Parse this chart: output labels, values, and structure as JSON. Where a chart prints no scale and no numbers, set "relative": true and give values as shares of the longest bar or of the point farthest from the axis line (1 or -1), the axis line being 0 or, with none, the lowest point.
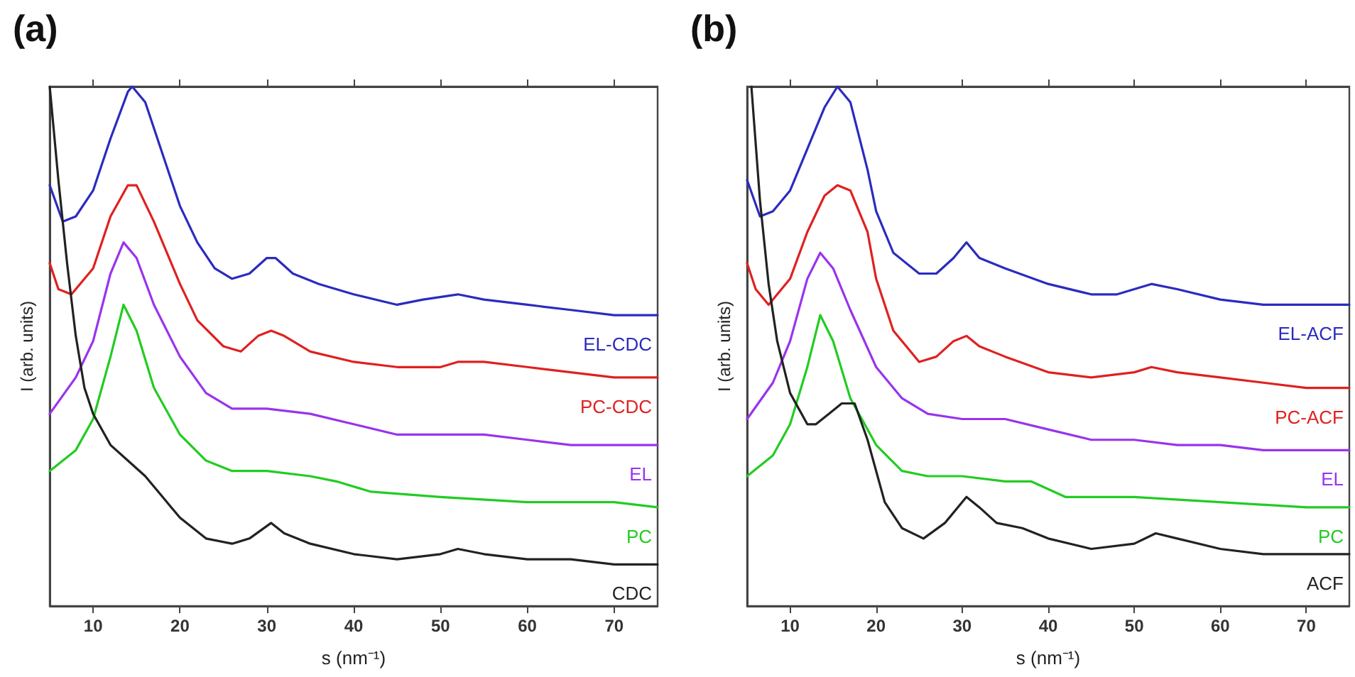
{
  "chart_data": [
    {
      "type": "line",
      "title": "(a)",
      "xlabel": "s (nm⁻¹)",
      "ylabel": "I (arb. units)",
      "xlim": [
        5,
        75
      ],
      "xticks": [
        10,
        20,
        30,
        40,
        50,
        60,
        70
      ],
      "relative": true,
      "tick_labels": "x",
      "marker": "none",
      "series": [
        {
          "name": "EL-CDC",
          "color": "#2b2bbf",
          "x": [
            5,
            6.5,
            8,
            10,
            12,
            14,
            14.5,
            16,
            18,
            20,
            22,
            24,
            26,
            28,
            30,
            31,
            33,
            36,
            40,
            45,
            48,
            52,
            55,
            60,
            65,
            70,
            75
          ],
          "values": [
            0.81,
            0.74,
            0.75,
            0.8,
            0.9,
            0.99,
            1.0,
            0.97,
            0.87,
            0.77,
            0.7,
            0.65,
            0.63,
            0.64,
            0.67,
            0.67,
            0.64,
            0.62,
            0.6,
            0.58,
            0.59,
            0.6,
            0.59,
            0.58,
            0.57,
            0.56,
            0.56
          ]
        },
        {
          "name": "PC-CDC",
          "color": "#e02020",
          "x": [
            5,
            6,
            7.5,
            10,
            12,
            14,
            15,
            17,
            20,
            22,
            25,
            27,
            29,
            30.5,
            32,
            35,
            40,
            45,
            50,
            52,
            55,
            60,
            65,
            70,
            75
          ],
          "values": [
            0.66,
            0.61,
            0.6,
            0.65,
            0.75,
            0.81,
            0.81,
            0.74,
            0.62,
            0.55,
            0.5,
            0.49,
            0.52,
            0.53,
            0.52,
            0.49,
            0.47,
            0.46,
            0.46,
            0.47,
            0.47,
            0.46,
            0.45,
            0.44,
            0.44
          ]
        },
        {
          "name": "EL",
          "color": "#9933ee",
          "x": [
            5,
            8,
            10,
            12,
            13.5,
            15,
            17,
            20,
            23,
            26,
            30,
            35,
            40,
            45,
            50,
            55,
            60,
            65,
            70,
            75
          ],
          "values": [
            0.37,
            0.44,
            0.51,
            0.64,
            0.7,
            0.67,
            0.58,
            0.48,
            0.41,
            0.38,
            0.38,
            0.37,
            0.35,
            0.33,
            0.33,
            0.33,
            0.32,
            0.31,
            0.31,
            0.31
          ]
        },
        {
          "name": "PC",
          "color": "#22cc22",
          "x": [
            5,
            8,
            10,
            12,
            13.5,
            15,
            17,
            20,
            23,
            26,
            30,
            35,
            38,
            42,
            50,
            60,
            70,
            75
          ],
          "values": [
            0.26,
            0.3,
            0.36,
            0.48,
            0.58,
            0.53,
            0.42,
            0.33,
            0.28,
            0.26,
            0.26,
            0.25,
            0.24,
            0.22,
            0.21,
            0.2,
            0.2,
            0.19
          ]
        },
        {
          "name": "CDC",
          "color": "#222222",
          "x": [
            5,
            6,
            7,
            8,
            9,
            10,
            12,
            14,
            16,
            18,
            19,
            20,
            23,
            26,
            28,
            30.5,
            32,
            35,
            40,
            45,
            50,
            52,
            55,
            60,
            65,
            70,
            75
          ],
          "values": [
            1.0,
            0.82,
            0.66,
            0.52,
            0.42,
            0.37,
            0.31,
            0.28,
            0.25,
            0.21,
            0.19,
            0.17,
            0.13,
            0.12,
            0.13,
            0.16,
            0.14,
            0.12,
            0.1,
            0.09,
            0.1,
            0.11,
            0.1,
            0.09,
            0.09,
            0.08,
            0.08
          ]
        }
      ]
    },
    {
      "type": "line",
      "title": "(b)",
      "xlabel": "s (nm⁻¹)",
      "ylabel": "I (arb. units)",
      "xlim": [
        5,
        75
      ],
      "xticks": [
        10,
        20,
        30,
        40,
        50,
        60,
        70
      ],
      "relative": true,
      "tick_labels": "x",
      "marker": "none",
      "series": [
        {
          "name": "EL-ACF",
          "color": "#2b2bbf",
          "x": [
            5,
            6.5,
            8,
            10,
            12,
            14,
            15.5,
            17,
            19,
            20,
            22,
            25,
            27,
            29,
            30.5,
            32,
            35,
            40,
            45,
            48,
            50,
            52,
            55,
            60,
            65,
            70,
            75
          ],
          "values": [
            0.82,
            0.75,
            0.76,
            0.8,
            0.88,
            0.96,
            1.0,
            0.97,
            0.84,
            0.76,
            0.68,
            0.64,
            0.64,
            0.67,
            0.7,
            0.67,
            0.65,
            0.62,
            0.6,
            0.6,
            0.61,
            0.62,
            0.61,
            0.59,
            0.58,
            0.58,
            0.58
          ]
        },
        {
          "name": "PC-ACF",
          "color": "#e02020",
          "x": [
            5,
            6,
            7.5,
            10,
            12,
            14,
            15.5,
            17,
            19,
            20,
            22,
            25,
            27,
            29,
            30.5,
            32,
            35,
            40,
            45,
            50,
            52,
            55,
            60,
            65,
            70,
            75
          ],
          "values": [
            0.66,
            0.61,
            0.58,
            0.63,
            0.72,
            0.79,
            0.81,
            0.8,
            0.72,
            0.63,
            0.53,
            0.47,
            0.48,
            0.51,
            0.52,
            0.5,
            0.48,
            0.45,
            0.44,
            0.45,
            0.46,
            0.45,
            0.44,
            0.43,
            0.42,
            0.42
          ]
        },
        {
          "name": "EL",
          "color": "#9933ee",
          "x": [
            5,
            8,
            10,
            12,
            13.5,
            15,
            17,
            20,
            23,
            26,
            30,
            35,
            40,
            45,
            50,
            55,
            60,
            65,
            70,
            75
          ],
          "values": [
            0.36,
            0.43,
            0.51,
            0.63,
            0.68,
            0.65,
            0.57,
            0.46,
            0.4,
            0.37,
            0.36,
            0.36,
            0.34,
            0.32,
            0.32,
            0.31,
            0.31,
            0.3,
            0.3,
            0.3
          ]
        },
        {
          "name": "PC",
          "color": "#22cc22",
          "x": [
            5,
            8,
            10,
            12,
            13.5,
            15,
            17,
            20,
            23,
            26,
            30,
            35,
            38,
            42,
            50,
            60,
            70,
            75
          ],
          "values": [
            0.25,
            0.29,
            0.35,
            0.46,
            0.56,
            0.51,
            0.4,
            0.31,
            0.26,
            0.25,
            0.25,
            0.24,
            0.24,
            0.21,
            0.21,
            0.2,
            0.19,
            0.19
          ]
        },
        {
          "name": "ACF",
          "color": "#222222",
          "x": [
            5.5,
            6.5,
            7.5,
            8.5,
            10,
            12,
            13,
            14.5,
            16,
            17.5,
            19,
            21,
            23,
            25.5,
            28,
            30.5,
            32,
            34,
            37,
            40,
            45,
            50,
            52.5,
            55,
            60,
            65,
            70,
            75
          ],
          "values": [
            1.0,
            0.78,
            0.62,
            0.51,
            0.41,
            0.35,
            0.35,
            0.37,
            0.39,
            0.39,
            0.32,
            0.2,
            0.15,
            0.13,
            0.16,
            0.21,
            0.19,
            0.16,
            0.15,
            0.13,
            0.11,
            0.12,
            0.14,
            0.13,
            0.11,
            0.1,
            0.1,
            0.1
          ]
        }
      ]
    }
  ]
}
